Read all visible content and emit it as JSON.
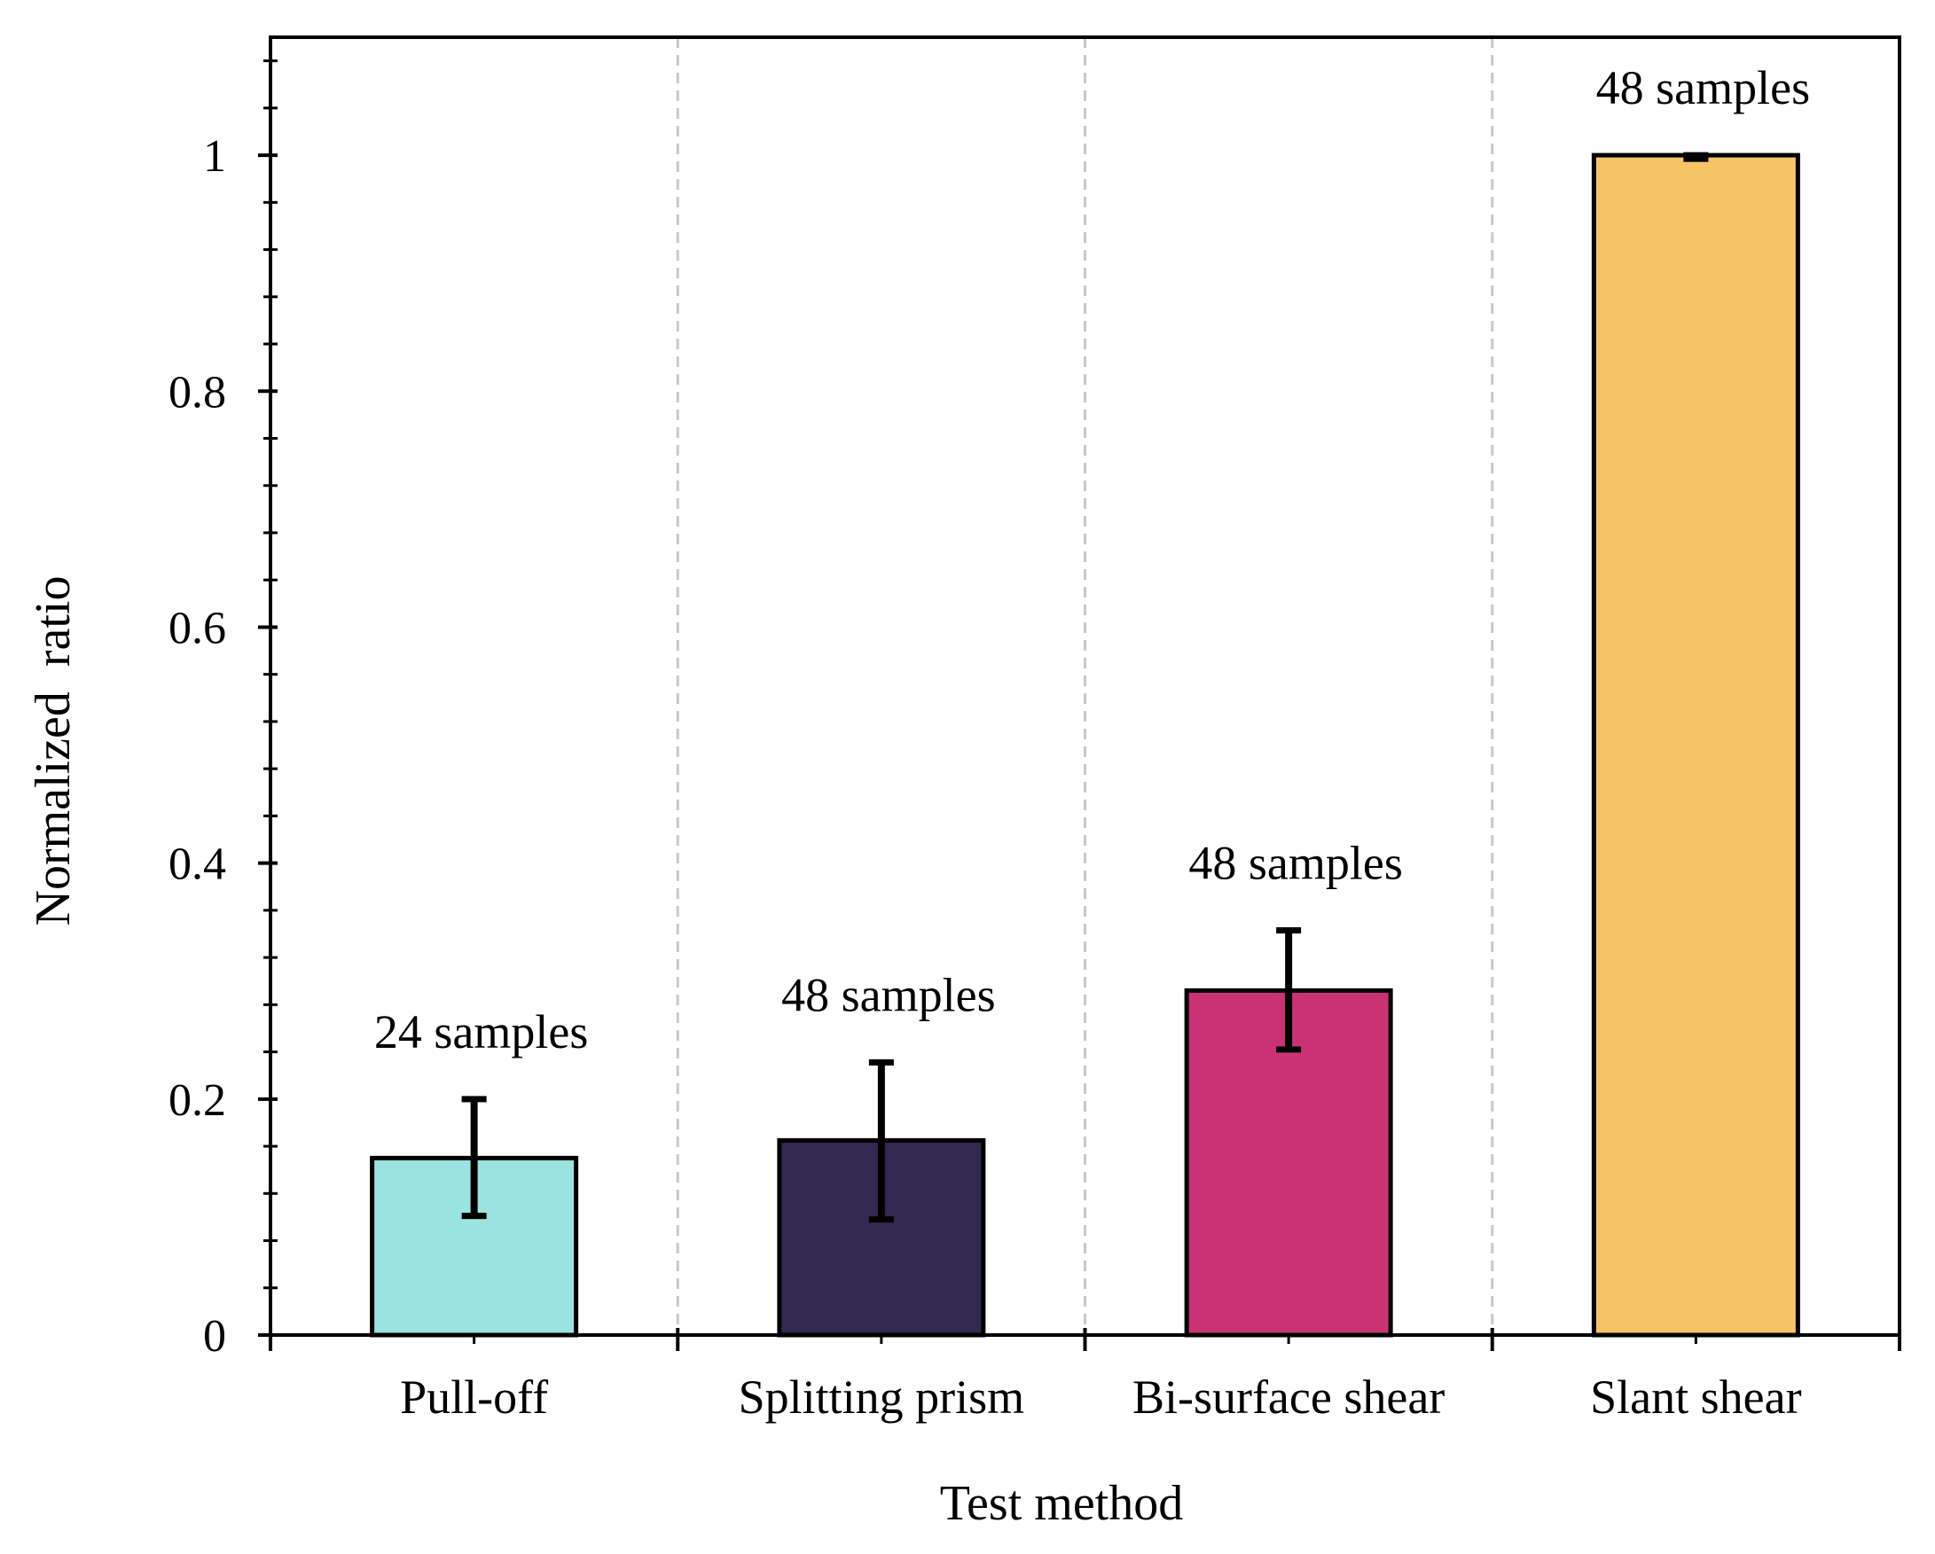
{
  "chart_data": {
    "type": "bar",
    "title": "",
    "xlabel": "Test method",
    "ylabel": "Normalized  ratio",
    "categories": [
      "Pull-off",
      "Splitting prism",
      "Bi-surface shear",
      "Slant shear"
    ],
    "values": [
      0.15,
      0.165,
      0.292,
      1.0
    ],
    "error_low": [
      0.101,
      0.098,
      0.242,
      0.997
    ],
    "error_high": [
      0.2,
      0.231,
      0.343,
      1.0
    ],
    "annotations": [
      "24 samples",
      "48 samples",
      "48 samples",
      "48 samples"
    ],
    "colors": [
      "#9be3e0",
      "#33284f",
      "#c93373",
      "#f5c466"
    ],
    "ylim": [
      0,
      1.1
    ],
    "yticks": [
      0,
      0.2,
      0.4,
      0.6,
      0.8,
      1
    ],
    "ytick_labels": [
      "0",
      "0.2",
      "0.4",
      "0.6",
      "0.8",
      "1"
    ],
    "grid": false,
    "category_separators": true
  }
}
